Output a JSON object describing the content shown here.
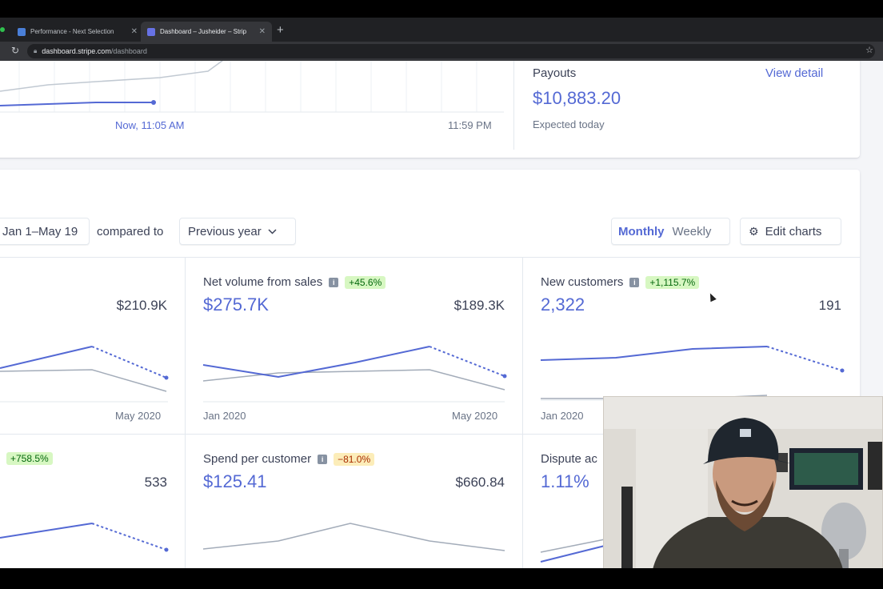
{
  "browser": {
    "tabs": [
      {
        "title": "Performance - Next Selection",
        "favicon_color": "#4a7fd8"
      },
      {
        "title": "Dashboard – Jusheider – Strip",
        "favicon_color": "#6772e5"
      }
    ],
    "url_host": "dashboard.stripe.com",
    "url_path": "/dashboard"
  },
  "today_chart": {
    "now_label": "Now, 11:05 AM",
    "end_label": "11:59 PM"
  },
  "payouts": {
    "title": "Payouts",
    "view_detail": "View detail",
    "amount": "$10,883.20",
    "subtitle": "Expected today"
  },
  "controls": {
    "date_range": "Jan 1–May 19",
    "compared_to": "compared to",
    "comparison": "Previous year",
    "monthly": "Monthly",
    "weekly": "Weekly",
    "edit_charts": "Edit charts"
  },
  "metrics": [
    {
      "title": "",
      "badge": "",
      "value": "",
      "compare": "$210.9K",
      "axis_start": "",
      "axis_end": "May 2020",
      "badge_color": "#d7f7c2"
    },
    {
      "title": "Net volume from sales",
      "badge": "+45.6%",
      "value": "$275.7K",
      "compare": "$189.3K",
      "axis_start": "Jan 2020",
      "axis_end": "May 2020"
    },
    {
      "title": "New customers",
      "badge": "+1,115.7%",
      "value": "2,322",
      "compare": "191",
      "axis_start": "Jan 2020",
      "axis_end": ""
    },
    {
      "title": "",
      "badge": "+758.5%",
      "value": "",
      "compare": "533",
      "axis_start": "",
      "axis_end": ""
    },
    {
      "title": "Spend per customer",
      "badge": "−81.0%",
      "value": "$125.41",
      "compare": "$660.84",
      "axis_start": "",
      "axis_end": ""
    },
    {
      "title": "Dispute ac",
      "badge": "",
      "value": "1.11%",
      "compare": "",
      "axis_start": "",
      "axis_end": ""
    }
  ],
  "colors": {
    "accent": "#5469d4",
    "compare_line": "#a3acb9",
    "badge_positive": "#d7f7c2",
    "badge_negative": "#fcedb9"
  }
}
